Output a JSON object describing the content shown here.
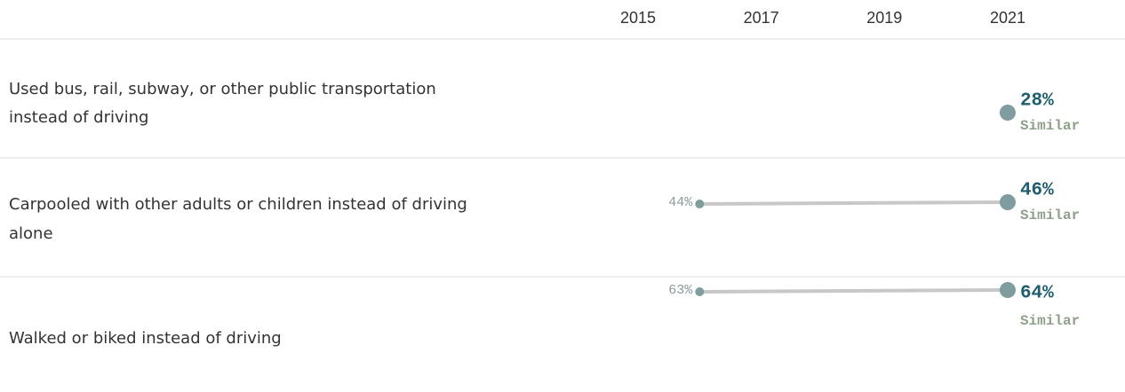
{
  "chart_data": {
    "type": "dumbbell",
    "xlim": [
      2013.9,
      2022
    ],
    "xticks": [
      2015,
      2017,
      2019,
      2021
    ],
    "line_color": "#c8c8c8",
    "dot_color": "#7f9c9e",
    "label_color": "#1d5f6e",
    "note_color": "#8fa08a",
    "rows": [
      {
        "label": [
          "Used bus, rail, subway, or other public transportation",
          "instead of driving"
        ],
        "x": [
          2021
        ],
        "values": [
          28
        ],
        "value_labels": [
          "28%"
        ],
        "note": "Similar"
      },
      {
        "label": [
          "Carpooled with other adults or children instead of driving",
          "alone"
        ],
        "x": [
          2016,
          2021
        ],
        "values": [
          44,
          46
        ],
        "value_labels": [
          "44%",
          "46%"
        ],
        "note": "Similar"
      },
      {
        "label": [
          "Walked or biked instead of driving"
        ],
        "x": [
          2016,
          2021
        ],
        "values": [
          63,
          64
        ],
        "value_labels": [
          "63%",
          "64%"
        ],
        "note": "Similar"
      }
    ]
  }
}
